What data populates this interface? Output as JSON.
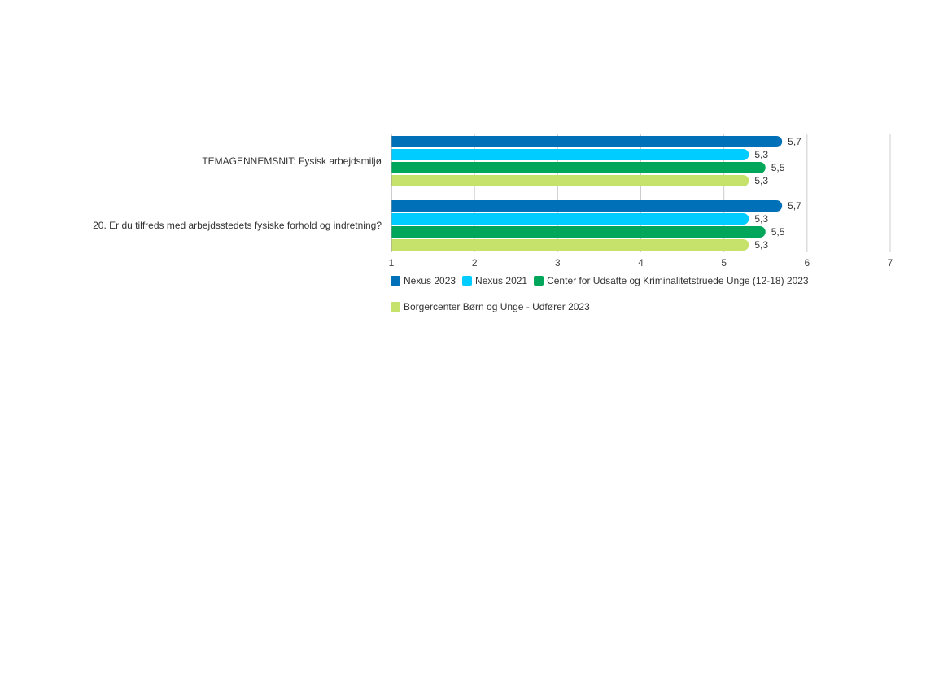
{
  "chart_data": {
    "type": "bar",
    "orientation": "horizontal",
    "categories": [
      "TEMAGENNEMSNIT: Fysisk arbejdsmiljø",
      "20. Er du tilfreds med arbejdsstedets fysiske forhold og indretning?"
    ],
    "series": [
      {
        "name": "Nexus 2023",
        "color": "#0070B8",
        "values": [
          5.7,
          5.7
        ],
        "labels": [
          "5,7",
          "5,7"
        ]
      },
      {
        "name": "Nexus 2021",
        "color": "#00CCFF",
        "values": [
          5.3,
          5.3
        ],
        "labels": [
          "5,3",
          "5,3"
        ]
      },
      {
        "name": "Center for Udsatte og Kriminalitetstruede Unge (12-18) 2023",
        "color": "#00A65A",
        "values": [
          5.5,
          5.5
        ],
        "labels": [
          "5,5",
          "5,5"
        ]
      },
      {
        "name": "Borgercenter Børn og Unge - Udfører 2023",
        "color": "#C6E26A",
        "values": [
          5.3,
          5.3
        ],
        "labels": [
          "5,3",
          "5,3"
        ]
      }
    ],
    "xlim": [
      1,
      7
    ],
    "xticks": [
      "1",
      "2",
      "3",
      "4",
      "5",
      "6",
      "7"
    ],
    "grid": true,
    "legend_position": "bottom"
  }
}
